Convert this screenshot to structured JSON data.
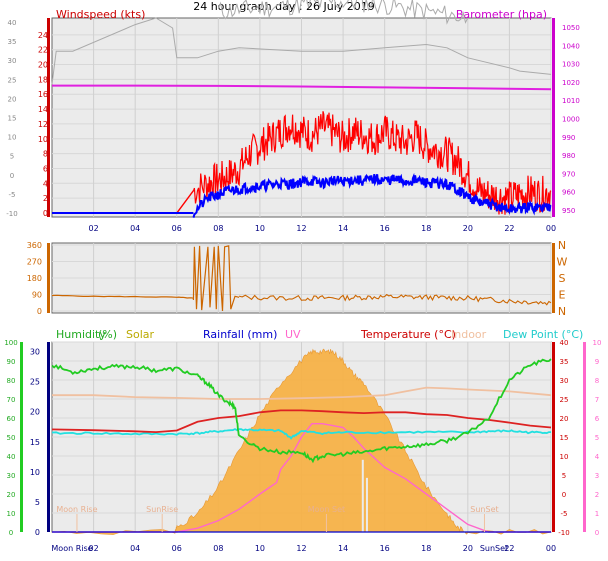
{
  "title": "24 hour graph day : 26 July 2019",
  "chart_data": [
    {
      "type": "line",
      "panel": "wind-baro",
      "legend": {
        "left": "Windspeed (kts)",
        "right": "Barometer (hpa)"
      },
      "x_ticks": [
        "02",
        "04",
        "06",
        "08",
        "10",
        "12",
        "14",
        "16",
        "18",
        "20",
        "22",
        "00"
      ],
      "y_left_ticks": [
        "24",
        "22",
        "20",
        "18",
        "16",
        "14",
        "12",
        "10",
        "8",
        "6",
        "4",
        "2",
        "0"
      ],
      "y_far_left_ticks": [
        "40",
        "35",
        "30",
        "25",
        "20",
        "15",
        "10",
        "5",
        "0",
        "-5",
        "-10"
      ],
      "y_right_ticks": [
        "1050",
        "1040",
        "1030",
        "1020",
        "1010",
        "1000",
        "990",
        "980",
        "970",
        "960",
        "950"
      ],
      "colors": {
        "gust": "#ff0000",
        "wind": "#0000ff",
        "baro": "#e020e0",
        "temp_ghost": "#aaaaaa",
        "left_axis": "#cc0000",
        "right_axis": "#cc00cc"
      },
      "series": [
        {
          "name": "Windspeed (kts)",
          "x": [
            0,
            1,
            2,
            3,
            4,
            5,
            6,
            6.8,
            7.5,
            8,
            8.5,
            9,
            9.5,
            10,
            10.5,
            11,
            11.5,
            12,
            12.5,
            13,
            13.5,
            14,
            14.5,
            15,
            15.5,
            16,
            16.5,
            17,
            17.5,
            18,
            18.5,
            19,
            19.5,
            20,
            20.5,
            21,
            21.5,
            22,
            22.5,
            23,
            23.5,
            24
          ],
          "y": [
            0,
            0,
            0,
            0,
            0,
            0,
            0,
            0,
            2,
            2.5,
            3,
            3.2,
            3.5,
            3.6,
            3.8,
            4,
            3.9,
            4.2,
            4.3,
            4,
            4.4,
            4.2,
            4.5,
            4.3,
            4.6,
            4.4,
            4.5,
            4.2,
            4.4,
            4.1,
            4,
            3.8,
            3.2,
            2.2,
            1.5,
            1.2,
            0.8,
            0.5,
            0.6,
            0.8,
            0.7,
            0.9
          ]
        },
        {
          "name": "Gust",
          "x": [
            0,
            1,
            2,
            3,
            4,
            5,
            6,
            6.8,
            7.5,
            8,
            8.5,
            9,
            9.5,
            10,
            10.5,
            11,
            11.5,
            12,
            12.5,
            13,
            13.5,
            14,
            14.5,
            15,
            15.5,
            16,
            16.5,
            17,
            17.5,
            18,
            18.5,
            19,
            19.5,
            20,
            20.5,
            21,
            21.5,
            22,
            22.5,
            23,
            23.5,
            24
          ],
          "y": [
            0,
            0,
            0,
            0,
            0,
            0,
            0,
            3,
            4,
            4.5,
            5,
            6,
            8,
            9,
            10,
            11,
            12,
            11,
            10.5,
            11.5,
            11,
            10,
            11,
            10.5,
            10,
            11,
            10,
            9.5,
            10.5,
            9,
            8.5,
            8,
            7,
            5,
            3,
            2.5,
            2.2,
            2,
            2.5,
            2.8,
            2.5,
            3
          ]
        },
        {
          "name": "Barometer (hpa)",
          "x": [
            0,
            4,
            8,
            12,
            16,
            20,
            24
          ],
          "y": [
            1018,
            1018,
            1017.8,
            1017.5,
            1017,
            1016.5,
            1016
          ]
        }
      ]
    },
    {
      "type": "line",
      "panel": "direction",
      "y_left_ticks": [
        "360",
        "270",
        "180",
        "90",
        "0"
      ],
      "y_right_labels": [
        "N",
        "W",
        "S",
        "E",
        "N"
      ],
      "colors": {
        "dir": "#cc6600"
      },
      "series": [
        {
          "name": "Wind direction",
          "x": [
            0,
            2,
            4,
            6,
            6.8,
            7,
            7.5,
            8,
            8.5,
            9,
            10,
            12,
            14,
            16,
            18,
            20,
            22,
            24
          ],
          "y": [
            85,
            80,
            78,
            75,
            70,
            350,
            20,
            340,
            10,
            80,
            75,
            70,
            72,
            75,
            78,
            70,
            55,
            45
          ]
        }
      ]
    },
    {
      "type": "line",
      "panel": "temp-hum-solar",
      "legend": {
        "humidity": "Humidity",
        "humidity_unit": "(%)",
        "solar": "Solar",
        "rainfall": "Rainfall (mm)",
        "uv": "UV",
        "temperature": "Temperature (°C)",
        "indoor": "Indoor",
        "dewpoint": "Dew Point (°C)"
      },
      "y_far_left_ticks": [
        "100",
        "90",
        "80",
        "70",
        "60",
        "50",
        "40",
        "30",
        "20",
        "10",
        "0"
      ],
      "y_left_ticks": [
        "30",
        "25",
        "20",
        "15",
        "10",
        "5",
        "0"
      ],
      "y_right_ticks": [
        "40",
        "35",
        "30",
        "25",
        "20",
        "15",
        "10",
        "5",
        "0",
        "-5",
        "-10"
      ],
      "y_far_right_ticks": [
        "10",
        "9",
        "8",
        "7",
        "6",
        "5",
        "4",
        "3",
        "2",
        "1",
        "0"
      ],
      "x_labels": [
        "Moon Rise",
        "02",
        "04",
        "06",
        "08",
        "10",
        "12",
        "14",
        "16",
        "18",
        "20",
        "SunSet",
        "22",
        "00"
      ],
      "annotations": {
        "moon_rise": "Moon Rise",
        "sun_rise": "SunRise",
        "sun_set": "SunSet",
        "moon_set": "Moon Set"
      },
      "colors": {
        "humidity": "#22cc22",
        "temperature": "#dd2222",
        "dewpoint": "#22e0e0",
        "indoor": "#f0c0a0",
        "uv": "#ff66cc",
        "solar": "#f8b040",
        "solar_legend": "#bbaa00",
        "rain": "#0000cc"
      },
      "series": [
        {
          "name": "Humidity",
          "x": [
            0,
            1,
            2,
            3,
            4,
            5,
            6,
            7,
            7.5,
            8,
            8.5,
            8.8,
            9,
            10,
            11,
            12,
            12.5,
            13,
            14,
            15,
            16,
            17,
            18,
            19,
            20,
            21,
            22,
            23,
            24
          ],
          "y": [
            88,
            84,
            86,
            87,
            87,
            85,
            86,
            82,
            78,
            72,
            68,
            66,
            50,
            44,
            42,
            42,
            38,
            40,
            41,
            42,
            44,
            45,
            46,
            48,
            52,
            60,
            80,
            88,
            91
          ]
        },
        {
          "name": "Temperature (°C)",
          "x": [
            0,
            2,
            4,
            5,
            6,
            7,
            8,
            9,
            10,
            11,
            12,
            13,
            14,
            15,
            16,
            17,
            18,
            19,
            20,
            21,
            22,
            23,
            24
          ],
          "y": [
            17,
            16.8,
            16.5,
            16.3,
            16.7,
            19,
            20,
            20.5,
            21.5,
            22,
            22,
            21.8,
            21.5,
            21.3,
            21.5,
            21.5,
            21,
            20.8,
            20,
            19.5,
            18.8,
            18,
            17.5
          ]
        },
        {
          "name": "Dew Point (°C)",
          "x": [
            0,
            2,
            4,
            6,
            7,
            8,
            9,
            10,
            11,
            11.5,
            12,
            13,
            14,
            16,
            18,
            20,
            21,
            22,
            23,
            24
          ],
          "y": [
            16,
            16,
            15.8,
            15.8,
            16,
            16.5,
            17,
            16.8,
            16.6,
            14.8,
            16.5,
            16,
            16.2,
            16.2,
            16.3,
            16.2,
            16.5,
            16.6,
            16.2,
            16.3
          ]
        },
        {
          "name": "Indoor",
          "x": [
            0,
            2,
            4,
            6,
            8,
            10,
            12,
            14,
            16,
            17,
            18,
            19,
            20,
            22,
            24
          ],
          "y": [
            26,
            26,
            25.5,
            25.3,
            25,
            25,
            25.2,
            25.5,
            26,
            27,
            28,
            27.8,
            27.5,
            27,
            26
          ]
        },
        {
          "name": "UV",
          "x": [
            0,
            6,
            7,
            8,
            9,
            10,
            10.8,
            11,
            11.5,
            12,
            12.5,
            13,
            13.5,
            14,
            14.5,
            15,
            16,
            17,
            18,
            19,
            19.5,
            20,
            21,
            24
          ],
          "y": [
            0,
            0,
            0.2,
            0.6,
            1.2,
            2,
            2.6,
            3.3,
            4,
            5,
            5.7,
            5.7,
            5.6,
            5.5,
            5,
            4.4,
            3.4,
            2.8,
            2,
            1.2,
            0.8,
            0.4,
            0,
            0
          ]
        },
        {
          "name": "Solar",
          "x": [
            0,
            5.9,
            6,
            7,
            8,
            9,
            10,
            11,
            12,
            12.5,
            13,
            13.5,
            14,
            14.5,
            15,
            16,
            17,
            18,
            19,
            19.5,
            20,
            24
          ],
          "y": [
            0,
            0,
            1,
            4,
            10,
            18,
            26,
            33,
            38,
            40,
            40,
            40,
            38,
            35,
            33,
            26,
            18,
            10,
            4,
            1,
            0,
            0
          ]
        },
        {
          "name": "Rainfall (mm)",
          "x": [
            0,
            24
          ],
          "y": [
            0,
            0
          ]
        }
      ]
    }
  ]
}
